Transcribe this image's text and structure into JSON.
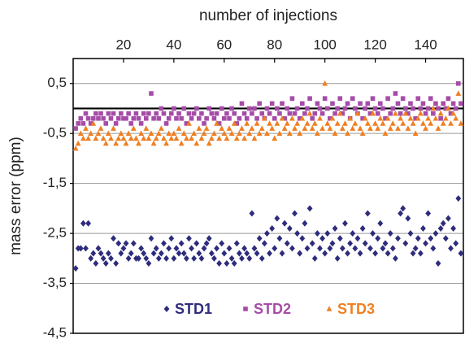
{
  "chart_data": {
    "type": "scatter",
    "xlabel": "number of injections",
    "ylabel": "mass error (ppm)",
    "xlim": [
      0,
      155
    ],
    "xticks": [
      20,
      40,
      60,
      80,
      100,
      120,
      140
    ],
    "ylim": [
      -4.5,
      1.0
    ],
    "yticks": [
      {
        "value": 0.5,
        "label": "0,5"
      },
      {
        "value": -0.5,
        "label": "-0,5"
      },
      {
        "value": -1.5,
        "label": "-1,5"
      },
      {
        "value": -2.5,
        "label": "-2,5"
      },
      {
        "value": -3.5,
        "label": "-3,5"
      },
      {
        "value": -4.5,
        "label": "-4,5"
      }
    ],
    "grid": true,
    "hline": 0,
    "legend": "bottom",
    "x": [
      1,
      2,
      3,
      4,
      5,
      6,
      7,
      8,
      9,
      10,
      11,
      12,
      13,
      14,
      15,
      16,
      17,
      18,
      19,
      20,
      21,
      22,
      23,
      24,
      25,
      26,
      27,
      28,
      29,
      30,
      31,
      32,
      33,
      34,
      35,
      36,
      37,
      38,
      39,
      40,
      41,
      42,
      43,
      44,
      45,
      46,
      47,
      48,
      49,
      50,
      51,
      52,
      53,
      54,
      55,
      56,
      57,
      58,
      59,
      60,
      61,
      62,
      63,
      64,
      65,
      66,
      67,
      68,
      69,
      70,
      71,
      72,
      73,
      74,
      75,
      76,
      77,
      78,
      79,
      80,
      81,
      82,
      83,
      84,
      85,
      86,
      87,
      88,
      89,
      90,
      91,
      92,
      93,
      94,
      95,
      96,
      97,
      98,
      99,
      100,
      101,
      102,
      103,
      104,
      105,
      106,
      107,
      108,
      109,
      110,
      111,
      112,
      113,
      114,
      115,
      116,
      117,
      118,
      119,
      120,
      121,
      122,
      123,
      124,
      125,
      126,
      127,
      128,
      129,
      130,
      131,
      132,
      133,
      134,
      135,
      136,
      137,
      138,
      139,
      140,
      141,
      142,
      143,
      144,
      145,
      146,
      147,
      148,
      149,
      150,
      151,
      152,
      153,
      154
    ],
    "series": [
      {
        "name": "STD1",
        "color": "#2e2c7c",
        "marker": "diamond",
        "values": [
          -3.2,
          -2.8,
          -2.8,
          -2.3,
          -2.8,
          -2.3,
          -3.0,
          -2.9,
          -3.1,
          -2.8,
          -2.9,
          -3.0,
          -3.1,
          -2.9,
          -3.0,
          -2.6,
          -3.1,
          -2.7,
          -2.9,
          -2.8,
          -2.7,
          -3.0,
          -2.9,
          -2.7,
          -3.0,
          -3.0,
          -2.8,
          -2.9,
          -3.0,
          -3.1,
          -2.6,
          -2.9,
          -2.8,
          -3.0,
          -2.9,
          -2.7,
          -3.0,
          -2.8,
          -2.6,
          -3.0,
          -2.8,
          -2.9,
          -2.7,
          -2.9,
          -3.0,
          -2.6,
          -2.8,
          -3.0,
          -2.7,
          -2.9,
          -3.0,
          -2.8,
          -2.7,
          -2.6,
          -2.9,
          -3.0,
          -2.8,
          -3.1,
          -2.7,
          -2.9,
          -3.1,
          -2.8,
          -3.0,
          -3.1,
          -2.7,
          -2.9,
          -3.0,
          -2.8,
          -2.9,
          -3.0,
          -2.1,
          -2.8,
          -2.9,
          -2.6,
          -3.0,
          -2.7,
          -2.5,
          -2.9,
          -2.4,
          -2.8,
          -2.2,
          -2.6,
          -2.9,
          -2.3,
          -2.7,
          -2.4,
          -2.8,
          -2.1,
          -2.5,
          -2.9,
          -2.6,
          -2.3,
          -2.8,
          -2.0,
          -2.7,
          -3.0,
          -2.5,
          -2.8,
          -2.6,
          -2.9,
          -2.5,
          -2.8,
          -2.7,
          -2.4,
          -3.0,
          -2.6,
          -2.8,
          -2.3,
          -2.9,
          -2.7,
          -2.5,
          -2.8,
          -2.6,
          -2.9,
          -2.4,
          -2.7,
          -2.1,
          -2.8,
          -2.5,
          -2.9,
          -2.6,
          -2.3,
          -2.8,
          -2.7,
          -2.9,
          -2.5,
          -2.8,
          -3.0,
          -2.6,
          -2.1,
          -2.0,
          -2.7,
          -2.2,
          -2.5,
          -2.9,
          -2.8,
          -2.6,
          -2.9,
          -2.4,
          -2.7,
          -2.1,
          -2.6,
          -2.8,
          -2.5,
          -3.1,
          -2.4,
          -2.3,
          -2.6,
          -2.2,
          -2.8,
          -2.4,
          -2.7,
          -1.8,
          -2.9
        ]
      },
      {
        "name": "STD2",
        "color": "#a64ca8",
        "marker": "square",
        "values": [
          -0.4,
          -0.3,
          -0.2,
          -0.3,
          -0.1,
          -0.2,
          -0.3,
          -0.2,
          -0.1,
          -0.2,
          -0.1,
          -0.2,
          -0.3,
          -0.1,
          -0.2,
          -0.1,
          -0.3,
          -0.2,
          -0.1,
          -0.2,
          -0.2,
          -0.1,
          -0.3,
          -0.2,
          -0.1,
          -0.2,
          -0.3,
          -0.1,
          -0.2,
          -0.1,
          0.3,
          -0.2,
          -0.1,
          -0.2,
          0.0,
          -0.1,
          -0.3,
          -0.2,
          -0.1,
          0.0,
          -0.2,
          -0.1,
          -0.2,
          0.0,
          -0.3,
          -0.1,
          -0.2,
          -0.1,
          0.0,
          -0.2,
          -0.1,
          -0.3,
          -0.2,
          0.0,
          -0.1,
          -0.2,
          -0.1,
          -0.3,
          0.0,
          -0.2,
          -0.1,
          -0.2,
          0.0,
          -0.1,
          -0.3,
          -0.2,
          0.1,
          -0.1,
          -0.2,
          0.0,
          -0.1,
          0.0,
          -0.2,
          0.1,
          -0.1,
          -0.2,
          0.0,
          -0.1,
          0.1,
          -0.2,
          0.0,
          -0.1,
          0.1,
          -0.2,
          0.0,
          -0.1,
          0.2,
          -0.1,
          0.0,
          -0.2,
          0.1,
          -0.1,
          0.0,
          0.2,
          -0.2,
          -0.1,
          0.1,
          0.0,
          -0.1,
          0.2,
          0.0,
          -0.2,
          0.1,
          -0.1,
          0.0,
          0.2,
          -0.1,
          0.0,
          0.1,
          -0.2,
          0.2,
          0.0,
          -0.1,
          0.1,
          -0.2,
          0.0,
          0.1,
          -0.1,
          0.2,
          0.0,
          -0.1,
          0.1,
          0.0,
          -0.2,
          0.2,
          -0.1,
          0.0,
          0.3,
          0.1,
          -0.1,
          0.2,
          0.0,
          -0.1,
          0.1,
          0.0,
          -0.2,
          0.2,
          0.0,
          0.1,
          -0.1,
          0.0,
          0.2,
          -0.1,
          0.1,
          0.0,
          -0.2,
          0.1,
          0.0,
          0.2,
          -0.1,
          0.1,
          0.0,
          0.5,
          0.1
        ]
      },
      {
        "name": "STD3",
        "color": "#f07f22",
        "marker": "triangle",
        "values": [
          -0.8,
          -0.7,
          -0.5,
          -0.6,
          -0.4,
          -0.6,
          -0.5,
          -0.3,
          -0.6,
          -0.5,
          -0.4,
          -0.6,
          -0.7,
          -0.5,
          -0.6,
          -0.4,
          -0.7,
          -0.6,
          -0.5,
          -0.6,
          -0.7,
          -0.5,
          -0.6,
          -0.4,
          -0.6,
          -0.7,
          -0.5,
          -0.6,
          -0.4,
          -0.6,
          -0.5,
          -0.7,
          -0.6,
          -0.5,
          -0.4,
          -0.6,
          -0.7,
          -0.5,
          -0.6,
          -0.5,
          -0.6,
          -0.4,
          -0.7,
          -0.5,
          -0.6,
          -0.3,
          -0.6,
          -0.5,
          -0.7,
          -0.4,
          -0.6,
          -0.5,
          -0.4,
          -0.7,
          -0.6,
          -0.5,
          -0.3,
          -0.6,
          -0.4,
          -0.5,
          -0.6,
          -0.4,
          -0.5,
          -0.3,
          -0.6,
          -0.5,
          -0.4,
          -0.6,
          -0.3,
          -0.5,
          -0.4,
          -0.6,
          -0.3,
          -0.5,
          -0.4,
          -0.2,
          -0.5,
          -0.3,
          -0.4,
          -0.6,
          -0.3,
          -0.5,
          -0.2,
          -0.4,
          -0.3,
          -0.5,
          -0.2,
          -0.4,
          -0.3,
          -0.5,
          -0.2,
          -0.4,
          -0.3,
          -0.1,
          -0.4,
          -0.3,
          -0.5,
          -0.2,
          -0.4,
          0.5,
          -0.3,
          -0.4,
          -0.2,
          -0.5,
          -0.3,
          -0.1,
          -0.4,
          -0.3,
          -0.5,
          -0.2,
          -0.4,
          -0.3,
          -0.1,
          -0.4,
          -0.5,
          -0.2,
          -0.3,
          -0.4,
          -0.1,
          -0.3,
          -0.4,
          -0.2,
          -0.3,
          -0.5,
          -0.2,
          -0.4,
          -0.3,
          -0.1,
          -0.4,
          -0.2,
          -0.3,
          -0.1,
          -0.4,
          -0.2,
          -0.3,
          -0.5,
          -0.2,
          -0.1,
          -0.3,
          -0.4,
          -0.2,
          -0.3,
          0.0,
          -0.2,
          -0.4,
          -0.1,
          -0.3,
          -0.2,
          0.0,
          -0.3,
          -0.1,
          -0.2,
          0.3,
          -0.3
        ]
      }
    ]
  }
}
